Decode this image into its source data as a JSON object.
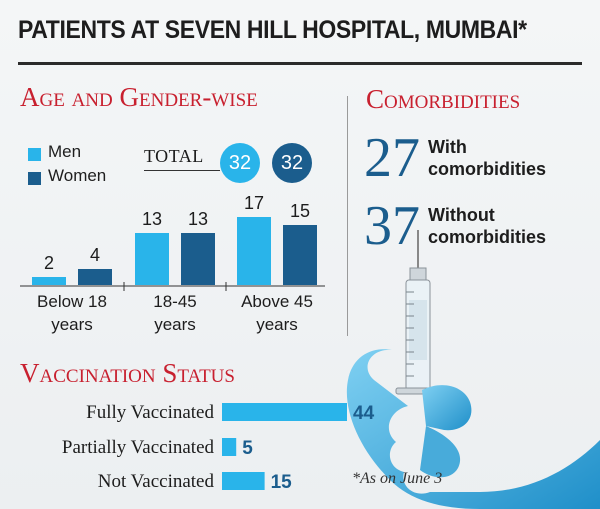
{
  "title": "PATIENTS AT SEVEN HILL HOSPITAL, MUMBAI*",
  "colors": {
    "men": "#29b4ea",
    "women": "#1b5d8d",
    "section": "#c8202f",
    "vaccination_bar": "#29b4ea"
  },
  "age_gender": {
    "section_title": "Age and Gender-wise",
    "legend": {
      "men": "Men",
      "women": "Women"
    },
    "total": {
      "label": "TOTAL",
      "men": "32",
      "women": "32"
    }
  },
  "comorbidities": {
    "section_title": "Comorbidities",
    "with": {
      "value": "27",
      "label": "With comorbidities"
    },
    "without": {
      "value": "37",
      "label": "Without comorbidities"
    }
  },
  "vaccination": {
    "section_title": "Vaccination Status",
    "note": "*As on June 3"
  },
  "chart_data": [
    {
      "type": "bar",
      "categories": [
        "Below 18 years",
        "18-45 years",
        "Above 45 years"
      ],
      "series": [
        {
          "name": "Men",
          "values": [
            2,
            13,
            17
          ]
        },
        {
          "name": "Women",
          "values": [
            4,
            13,
            15
          ]
        }
      ],
      "ylim": [
        0,
        18
      ]
    },
    {
      "type": "bar",
      "orientation": "horizontal",
      "categories": [
        "Fully Vaccinated",
        "Partially Vaccinated",
        "Not Vaccinated"
      ],
      "values": [
        44,
        5,
        15
      ]
    }
  ]
}
